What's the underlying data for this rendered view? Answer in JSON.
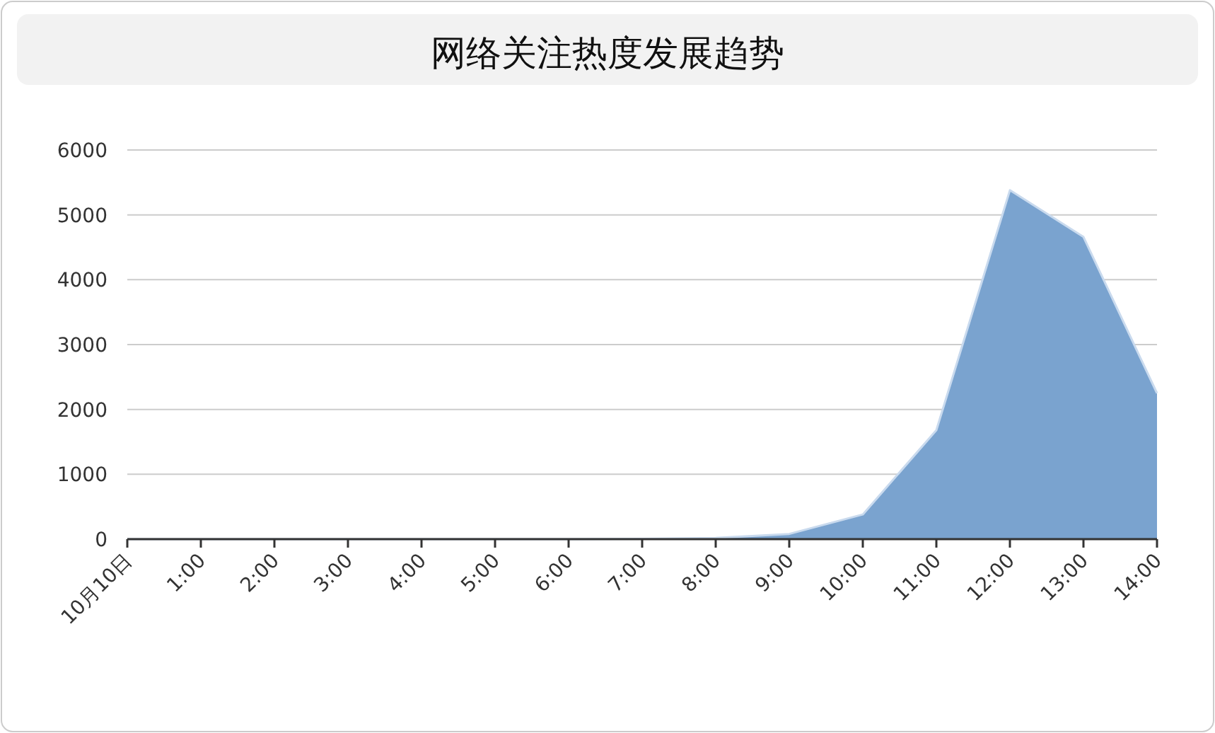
{
  "chart_data": {
    "type": "area",
    "title": "网络关注热度发展趋势",
    "categories": [
      "10月10日",
      "1:00",
      "2:00",
      "3:00",
      "4:00",
      "5:00",
      "6:00",
      "7:00",
      "8:00",
      "9:00",
      "10:00",
      "11:00",
      "12:00",
      "13:00",
      "14:00"
    ],
    "values": [
      0,
      0,
      0,
      0,
      0,
      0,
      0,
      5,
      20,
      80,
      380,
      1680,
      5380,
      4660,
      2250
    ],
    "color": "#7aa3cf",
    "ylim": [
      0,
      6000
    ],
    "yticks": [
      0,
      1000,
      2000,
      3000,
      4000,
      5000,
      6000
    ],
    "grid": "y"
  }
}
